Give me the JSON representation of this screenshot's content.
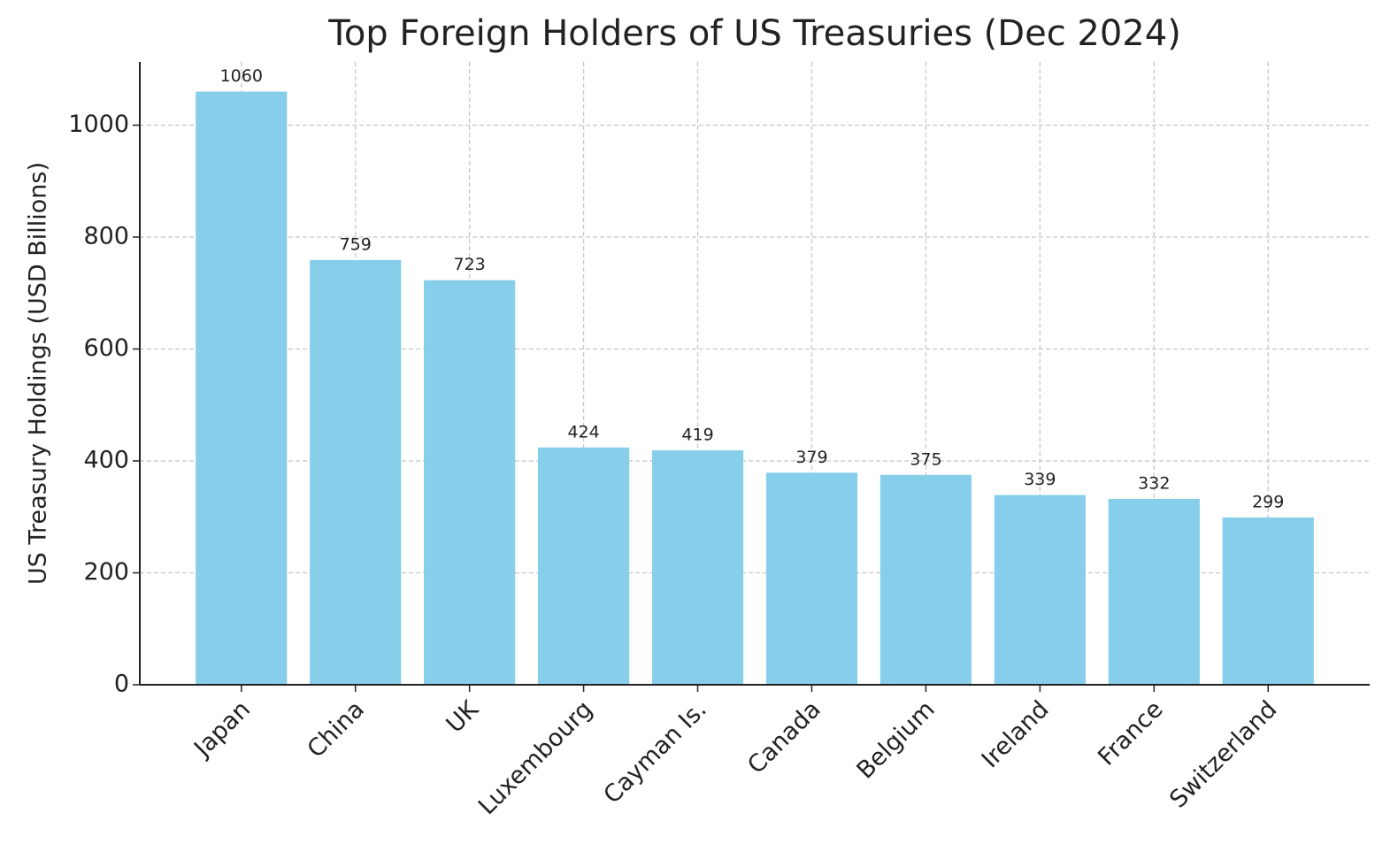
{
  "chart_data": {
    "type": "bar",
    "title": "Top Foreign Holders of US Treasuries (Dec 2024)",
    "y_label": "US Treasury Holdings (USD Billions)",
    "categories": [
      "Japan",
      "China",
      "UK",
      "Luxembourg",
      "Cayman Is.",
      "Canada",
      "Belgium",
      "Ireland",
      "France",
      "Switzerland"
    ],
    "values": [
      1060,
      759,
      723,
      424,
      419,
      379,
      375,
      339,
      332,
      299
    ],
    "color": "#87ceeb",
    "ylim": [
      0,
      1113
    ],
    "yticks": [
      0,
      200,
      400,
      600,
      800,
      1000
    ],
    "grid": true
  }
}
